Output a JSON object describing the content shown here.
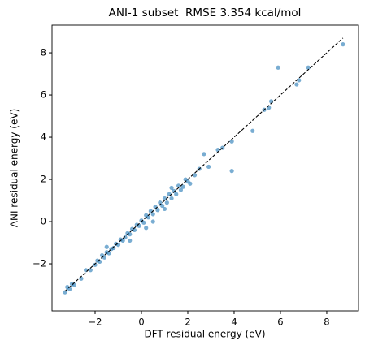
{
  "chart_data": {
    "type": "scatter",
    "title": "ANI-1 subset  RMSE 3.354 kcal/mol",
    "x_label": "DFT residual energy (eV)",
    "y_label": "ANI residual energy (eV)",
    "color": "#1f77b4",
    "x": [
      -3.3,
      -3.2,
      -3.1,
      -3.0,
      -2.9,
      -2.6,
      -2.4,
      -2.2,
      -2.0,
      -1.9,
      -1.8,
      -1.7,
      -1.6,
      -1.5,
      -1.4,
      -1.3,
      -1.2,
      -1.1,
      -1.0,
      -0.9,
      -0.8,
      -0.7,
      -0.6,
      -0.5,
      -0.4,
      -0.3,
      -0.2,
      -0.1,
      0.0,
      0.1,
      0.2,
      0.3,
      0.4,
      0.5,
      0.6,
      0.7,
      0.8,
      0.9,
      1.0,
      1.1,
      1.2,
      1.3,
      1.4,
      1.5,
      1.6,
      1.7,
      1.8,
      1.9,
      2.0,
      2.1,
      2.3,
      2.5,
      2.7,
      2.9,
      3.3,
      3.5,
      3.9,
      3.9,
      4.8,
      5.3,
      5.5,
      5.6,
      5.9,
      6.7,
      6.8,
      7.2,
      8.7,
      -0.5,
      0.5,
      1.0,
      -1.5,
      0.2,
      1.3
    ],
    "values": [
      -3.35,
      -3.1,
      -3.2,
      -2.95,
      -3.0,
      -2.7,
      -2.3,
      -2.3,
      -2.05,
      -1.85,
      -1.9,
      -1.6,
      -1.7,
      -1.45,
      -1.5,
      -1.3,
      -1.25,
      -1.05,
      -1.1,
      -0.85,
      -0.9,
      -0.75,
      -0.55,
      -0.6,
      -0.35,
      -0.4,
      -0.15,
      -0.2,
      0.05,
      -0.05,
      0.3,
      0.2,
      0.5,
      0.35,
      0.7,
      0.55,
      0.9,
      0.75,
      1.1,
      0.9,
      1.3,
      1.1,
      1.45,
      1.3,
      1.7,
      1.5,
      1.65,
      2.0,
      1.9,
      1.8,
      2.2,
      2.5,
      3.2,
      2.6,
      3.4,
      3.5,
      3.8,
      2.4,
      4.3,
      5.3,
      5.4,
      5.7,
      7.3,
      6.5,
      6.7,
      7.3,
      8.4,
      -0.9,
      0.0,
      0.6,
      -1.2,
      -0.3,
      1.6
    ],
    "reference_line": {
      "x": [
        -3.3,
        8.7
      ],
      "y": [
        -3.3,
        8.7
      ],
      "color": "#000000",
      "style": "dashed"
    },
    "xlim": [
      -3.86,
      9.37
    ],
    "ylim": [
      -4.23,
      9.31
    ],
    "xticks": [
      {
        "value": -2,
        "label": "−2"
      },
      0,
      2,
      4,
      6,
      8
    ],
    "yticks": [
      {
        "value": -2,
        "label": "−2"
      },
      0,
      2,
      4,
      6,
      8
    ],
    "grid": false
  }
}
